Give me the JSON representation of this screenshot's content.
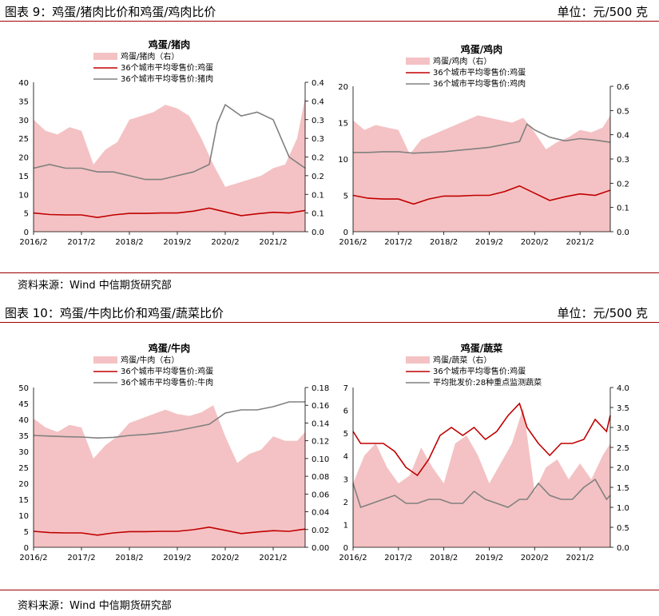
{
  "figures": [
    {
      "title": "图表 9：鸡蛋/猪肉比价和鸡蛋/鸡肉比价",
      "unit": "单位：元/500 克",
      "source": "资料来源：Wind 中信期货研究部"
    },
    {
      "title": "图表 10：鸡蛋/牛肉比价和鸡蛋/蔬菜比价",
      "unit": "单位：元/500 克",
      "source": "资料来源：Wind 中信期货研究部"
    }
  ],
  "colors": {
    "ratio_fill": "#f4c2c4",
    "egg_line": "#c00000",
    "other_line": "#808080"
  },
  "chart_data": [
    {
      "type": "area",
      "title": "鸡蛋/猪肉",
      "x_ticks": [
        "2016/2",
        "2017/2",
        "2018/2",
        "2019/2",
        "2020/2",
        "2021/2"
      ],
      "x_range": [
        "2016-02",
        "2021-10"
      ],
      "left_ylim": [
        0,
        40
      ],
      "left_ticks": [
        "0",
        "5",
        "10",
        "15",
        "20",
        "25",
        "30",
        "35",
        "40"
      ],
      "right_ylim": [
        0,
        0.4
      ],
      "right_ticks": [
        "0.0",
        "0.1",
        "0.1",
        "0.2",
        "0.2",
        "0.3",
        "0.3",
        "0.4",
        "0.4"
      ],
      "legend": [
        "鸡蛋/猪肉（右）",
        "36个城市平均零售价:鸡蛋",
        "36个城市平均零售价:猪肉"
      ],
      "series": [
        {
          "name": "鸡蛋/猪肉（右）",
          "axis": "right",
          "kind": "area",
          "x": [
            "2016-02",
            "2016-05",
            "2016-08",
            "2016-11",
            "2017-02",
            "2017-05",
            "2017-08",
            "2017-11",
            "2018-02",
            "2018-05",
            "2018-08",
            "2018-11",
            "2019-02",
            "2019-05",
            "2019-08",
            "2019-11",
            "2020-02",
            "2020-05",
            "2020-08",
            "2020-11",
            "2021-02",
            "2021-05",
            "2021-08",
            "2021-10"
          ],
          "y": [
            0.3,
            0.27,
            0.26,
            0.28,
            0.27,
            0.18,
            0.22,
            0.24,
            0.3,
            0.31,
            0.32,
            0.34,
            0.33,
            0.31,
            0.25,
            0.18,
            0.12,
            0.13,
            0.14,
            0.15,
            0.17,
            0.18,
            0.25,
            0.36
          ]
        },
        {
          "name": "36个城市平均零售价:鸡蛋",
          "axis": "left",
          "kind": "line",
          "x": [
            "2016-02",
            "2016-06",
            "2016-10",
            "2017-02",
            "2017-06",
            "2017-10",
            "2018-02",
            "2018-06",
            "2018-10",
            "2019-02",
            "2019-06",
            "2019-10",
            "2020-02",
            "2020-06",
            "2020-10",
            "2021-02",
            "2021-06",
            "2021-10"
          ],
          "y": [
            5.0,
            4.6,
            4.5,
            4.5,
            3.8,
            4.5,
            4.9,
            4.9,
            5.0,
            5.0,
            5.5,
            6.3,
            5.3,
            4.3,
            4.8,
            5.2,
            5.0,
            5.7
          ]
        },
        {
          "name": "36个城市平均零售价:猪肉",
          "axis": "left",
          "kind": "line",
          "x": [
            "2016-02",
            "2016-06",
            "2016-10",
            "2017-02",
            "2017-06",
            "2017-10",
            "2018-02",
            "2018-06",
            "2018-10",
            "2019-02",
            "2019-06",
            "2019-10",
            "2019-12",
            "2020-02",
            "2020-06",
            "2020-10",
            "2021-02",
            "2021-06",
            "2021-10"
          ],
          "y": [
            17,
            18,
            17,
            17,
            16,
            16,
            15,
            14,
            14,
            15,
            16,
            18,
            29,
            34,
            31,
            32,
            30,
            20,
            17
          ]
        }
      ]
    },
    {
      "type": "area",
      "title": "鸡蛋/鸡肉",
      "x_ticks": [
        "2016/2",
        "2017/2",
        "2018/2",
        "2019/2",
        "2020/2",
        "2021/2"
      ],
      "x_range": [
        "2016-02",
        "2021-10"
      ],
      "left_ylim": [
        0,
        20
      ],
      "left_ticks": [
        "0",
        "5",
        "10",
        "15",
        "20"
      ],
      "right_ylim": [
        0,
        0.6
      ],
      "right_ticks": [
        "0.0",
        "0.1",
        "0.2",
        "0.3",
        "0.4",
        "0.5",
        "0.6"
      ],
      "legend": [
        "鸡蛋/鸡肉（右）",
        "36个城市平均零售价:鸡蛋",
        "36个城市平均零售价:鸡肉"
      ],
      "series": [
        {
          "name": "鸡蛋/鸡肉（右）",
          "axis": "right",
          "kind": "area",
          "x": [
            "2016-02",
            "2016-05",
            "2016-08",
            "2016-11",
            "2017-02",
            "2017-05",
            "2017-08",
            "2017-11",
            "2018-02",
            "2018-05",
            "2018-08",
            "2018-11",
            "2019-02",
            "2019-05",
            "2019-08",
            "2019-11",
            "2020-02",
            "2020-05",
            "2020-08",
            "2020-11",
            "2021-02",
            "2021-05",
            "2021-08",
            "2021-10"
          ],
          "y": [
            0.46,
            0.42,
            0.44,
            0.43,
            0.42,
            0.32,
            0.38,
            0.4,
            0.42,
            0.44,
            0.46,
            0.48,
            0.47,
            0.46,
            0.45,
            0.47,
            0.41,
            0.34,
            0.37,
            0.39,
            0.42,
            0.41,
            0.43,
            0.48
          ]
        },
        {
          "name": "36个城市平均零售价:鸡蛋",
          "axis": "left",
          "kind": "line",
          "x": [
            "2016-02",
            "2016-06",
            "2016-10",
            "2017-02",
            "2017-06",
            "2017-10",
            "2018-02",
            "2018-06",
            "2018-10",
            "2019-02",
            "2019-06",
            "2019-10",
            "2020-02",
            "2020-06",
            "2020-10",
            "2021-02",
            "2021-06",
            "2021-10"
          ],
          "y": [
            5.0,
            4.6,
            4.5,
            4.5,
            3.8,
            4.5,
            4.9,
            4.9,
            5.0,
            5.0,
            5.5,
            6.3,
            5.3,
            4.3,
            4.8,
            5.2,
            5.0,
            5.7
          ]
        },
        {
          "name": "36个城市平均零售价:鸡肉",
          "axis": "left",
          "kind": "line",
          "x": [
            "2016-02",
            "2016-06",
            "2016-10",
            "2017-02",
            "2017-06",
            "2017-10",
            "2018-02",
            "2018-06",
            "2018-10",
            "2019-02",
            "2019-06",
            "2019-10",
            "2019-12",
            "2020-02",
            "2020-06",
            "2020-10",
            "2021-02",
            "2021-06",
            "2021-10"
          ],
          "y": [
            10.9,
            10.9,
            11.0,
            11.0,
            10.8,
            10.9,
            11.0,
            11.2,
            11.4,
            11.6,
            12.0,
            12.4,
            14.8,
            14.0,
            13.0,
            12.5,
            12.8,
            12.6,
            12.3
          ]
        }
      ]
    },
    {
      "type": "area",
      "title": "鸡蛋/牛肉",
      "x_ticks": [
        "2016/2",
        "2017/2",
        "2018/2",
        "2019/2",
        "2020/2",
        "2021/2"
      ],
      "x_range": [
        "2016-02",
        "2021-10"
      ],
      "left_ylim": [
        0,
        50
      ],
      "left_ticks": [
        "0",
        "5",
        "10",
        "15",
        "20",
        "25",
        "30",
        "35",
        "40",
        "45",
        "50"
      ],
      "right_ylim": [
        0,
        0.18
      ],
      "right_ticks": [
        "0.00",
        "0.02",
        "0.04",
        "0.06",
        "0.08",
        "0.10",
        "0.12",
        "0.14",
        "0.16",
        "0.18"
      ],
      "legend": [
        "鸡蛋/牛肉（右）",
        "36个城市平均零售价:鸡蛋",
        "36个城市平均零售价:牛肉"
      ],
      "series": [
        {
          "name": "鸡蛋/牛肉（右）",
          "axis": "right",
          "kind": "area",
          "x": [
            "2016-02",
            "2016-05",
            "2016-08",
            "2016-11",
            "2017-02",
            "2017-05",
            "2017-08",
            "2017-11",
            "2018-02",
            "2018-05",
            "2018-08",
            "2018-11",
            "2019-02",
            "2019-05",
            "2019-08",
            "2019-11",
            "2020-02",
            "2020-05",
            "2020-08",
            "2020-11",
            "2021-02",
            "2021-05",
            "2021-08",
            "2021-10"
          ],
          "y": [
            0.145,
            0.135,
            0.13,
            0.138,
            0.135,
            0.1,
            0.115,
            0.125,
            0.14,
            0.145,
            0.15,
            0.155,
            0.15,
            0.148,
            0.152,
            0.16,
            0.125,
            0.095,
            0.105,
            0.11,
            0.125,
            0.12,
            0.12,
            0.13
          ]
        },
        {
          "name": "36个城市平均零售价:鸡蛋",
          "axis": "left",
          "kind": "line",
          "x": [
            "2016-02",
            "2016-06",
            "2016-10",
            "2017-02",
            "2017-06",
            "2017-10",
            "2018-02",
            "2018-06",
            "2018-10",
            "2019-02",
            "2019-06",
            "2019-10",
            "2020-02",
            "2020-06",
            "2020-10",
            "2021-02",
            "2021-06",
            "2021-10"
          ],
          "y": [
            5.0,
            4.6,
            4.5,
            4.5,
            3.8,
            4.5,
            4.9,
            4.9,
            5.0,
            5.0,
            5.5,
            6.3,
            5.3,
            4.3,
            4.8,
            5.2,
            5.0,
            5.7
          ]
        },
        {
          "name": "36个城市平均零售价:牛肉",
          "axis": "left",
          "kind": "line",
          "x": [
            "2016-02",
            "2016-06",
            "2016-10",
            "2017-02",
            "2017-06",
            "2017-10",
            "2018-02",
            "2018-06",
            "2018-10",
            "2019-02",
            "2019-06",
            "2019-10",
            "2020-02",
            "2020-06",
            "2020-10",
            "2021-02",
            "2021-06",
            "2021-10"
          ],
          "y": [
            35,
            34.8,
            34.6,
            34.5,
            34.2,
            34.4,
            35,
            35.3,
            35.8,
            36.5,
            37.5,
            38.5,
            42,
            43,
            43,
            44,
            45.5,
            45.5
          ]
        }
      ]
    },
    {
      "type": "area",
      "title": "鸡蛋/蔬菜",
      "x_ticks": [
        "2016/2",
        "2017/2",
        "2018/2",
        "2019/2",
        "2020/2",
        "2021/2"
      ],
      "x_range": [
        "2016-02",
        "2021-10"
      ],
      "left_ylim": [
        0,
        7
      ],
      "left_ticks": [
        "0",
        "1",
        "2",
        "3",
        "4",
        "5",
        "6",
        "7"
      ],
      "right_ylim": [
        0,
        4
      ],
      "right_ticks": [
        "0.0",
        "0.5",
        "1.0",
        "1.5",
        "2.0",
        "2.5",
        "3.0",
        "3.5",
        "4.0"
      ],
      "legend": [
        "鸡蛋/蔬菜（右）",
        "36个城市平均零售价:鸡蛋",
        "平均批发价:28种重点监测蔬菜"
      ],
      "series": [
        {
          "name": "鸡蛋/蔬菜（右）",
          "axis": "right",
          "kind": "area",
          "x": [
            "2016-02",
            "2016-05",
            "2016-08",
            "2016-11",
            "2017-02",
            "2017-05",
            "2017-08",
            "2017-11",
            "2018-02",
            "2018-05",
            "2018-08",
            "2018-11",
            "2019-02",
            "2019-05",
            "2019-08",
            "2019-11",
            "2020-02",
            "2020-05",
            "2020-08",
            "2020-11",
            "2021-02",
            "2021-05",
            "2021-08",
            "2021-10"
          ],
          "y": [
            1.6,
            2.3,
            2.6,
            2.0,
            1.6,
            1.8,
            2.5,
            2.0,
            1.6,
            2.6,
            2.8,
            2.3,
            1.6,
            2.1,
            2.6,
            3.5,
            1.4,
            2.0,
            2.2,
            1.7,
            2.1,
            1.7,
            2.3,
            2.6
          ]
        },
        {
          "name": "36个城市平均零售价:鸡蛋",
          "axis": "right",
          "kind": "line",
          "x": [
            "2016-02",
            "2016-04",
            "2016-07",
            "2016-10",
            "2017-01",
            "2017-04",
            "2017-07",
            "2017-10",
            "2018-01",
            "2018-04",
            "2018-07",
            "2018-10",
            "2019-01",
            "2019-04",
            "2019-07",
            "2019-10",
            "2019-12",
            "2020-03",
            "2020-06",
            "2020-09",
            "2020-12",
            "2021-03",
            "2021-06",
            "2021-09",
            "2021-10"
          ],
          "y": [
            2.9,
            2.6,
            2.6,
            2.6,
            2.4,
            2.0,
            1.8,
            2.2,
            2.8,
            3.0,
            2.8,
            3.0,
            2.7,
            2.9,
            3.3,
            3.6,
            3.0,
            2.6,
            2.3,
            2.6,
            2.6,
            2.7,
            3.2,
            2.9,
            3.3
          ]
        },
        {
          "name": "平均批发价:28种重点监测蔬菜",
          "axis": "right",
          "kind": "line",
          "x": [
            "2016-02",
            "2016-04",
            "2016-07",
            "2016-10",
            "2017-01",
            "2017-04",
            "2017-07",
            "2017-10",
            "2018-01",
            "2018-04",
            "2018-07",
            "2018-10",
            "2019-01",
            "2019-04",
            "2019-07",
            "2019-10",
            "2019-12",
            "2020-03",
            "2020-06",
            "2020-09",
            "2020-12",
            "2021-03",
            "2021-06",
            "2021-09",
            "2021-10"
          ],
          "y": [
            1.6,
            1.0,
            1.1,
            1.2,
            1.3,
            1.1,
            1.1,
            1.2,
            1.2,
            1.1,
            1.1,
            1.4,
            1.2,
            1.1,
            1.0,
            1.2,
            1.2,
            1.6,
            1.3,
            1.2,
            1.2,
            1.5,
            1.7,
            1.2,
            1.3
          ]
        }
      ]
    }
  ]
}
